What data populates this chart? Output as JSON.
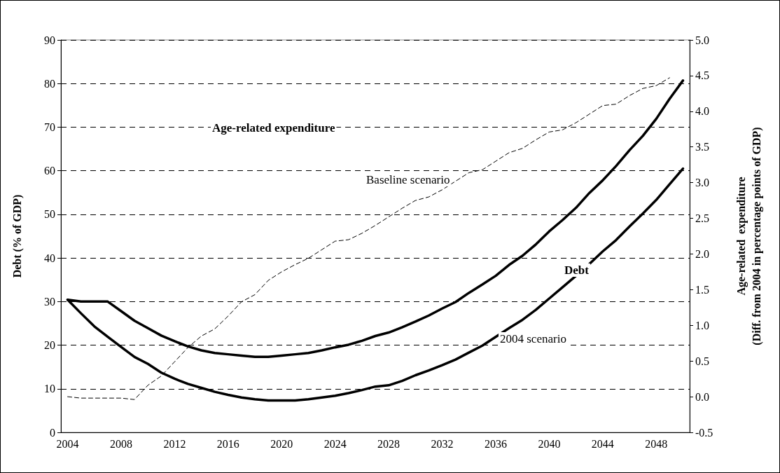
{
  "chart_data": {
    "type": "line",
    "ylabel": "Debt (% of GDP)",
    "y2label": "Age-related  expenditure\n(Diff. from 2004 in percentage points of GDP)",
    "annotations": [
      "Age-related expenditure",
      "Baseline scenario",
      "Debt",
      "2004 scenario"
    ],
    "categories": [
      "2004",
      null,
      null,
      null,
      "2008",
      null,
      null,
      null,
      "2012",
      null,
      null,
      null,
      "2016",
      null,
      null,
      null,
      "2020",
      null,
      null,
      null,
      "2024",
      null,
      null,
      null,
      "2028",
      null,
      null,
      null,
      "2032",
      null,
      null,
      null,
      "2036",
      null,
      null,
      null,
      "2040",
      null,
      null,
      null,
      "2044",
      null,
      null,
      null,
      "2048",
      null,
      null
    ],
    "series": [
      {
        "color": "#000000",
        "line_style": "solid",
        "values": [
          30.4,
          30,
          30,
          30,
          27.8,
          25.6,
          23.9,
          22.2,
          20.9,
          19.7,
          18.8,
          18.2,
          17.9,
          17.6,
          17.3,
          17.3,
          17.6,
          17.9,
          18.2,
          18.8,
          19.5,
          20.1,
          21.0,
          22.1,
          22.9,
          24.1,
          25.4,
          26.8,
          28.4,
          29.9,
          32.0,
          33.9,
          35.9,
          38.4,
          40.5,
          43.1,
          46.1,
          48.7,
          51.5,
          54.9,
          57.8,
          61.1,
          64.7,
          68.0,
          71.9,
          76.5,
          80.7
        ]
      },
      {
        "color": "#000000",
        "line_style": "solid",
        "values": [
          30.4,
          27.3,
          24.3,
          21.9,
          19.6,
          17.3,
          15.7,
          13.7,
          12.3,
          11.1,
          10.2,
          9.3,
          8.6,
          8.0,
          7.6,
          7.3,
          7.3,
          7.3,
          7.6,
          8.0,
          8.4,
          9.0,
          9.7,
          10.5,
          10.8,
          11.8,
          13.1,
          14.2,
          15.4,
          16.7,
          18.3,
          19.9,
          21.9,
          23.9,
          25.8,
          28.1,
          30.7,
          33.3,
          35.9,
          38.6,
          41.5,
          44.1,
          47.2,
          50.2,
          53.3,
          56.9,
          60.5
        ]
      },
      {
        "color": "#000000",
        "line_style": "dashed",
        "axis": "y2",
        "values": [
          0.0,
          -0.02,
          -0.02,
          -0.02,
          -0.02,
          -0.04,
          0.16,
          0.29,
          0.49,
          0.69,
          0.85,
          0.95,
          1.13,
          1.33,
          1.43,
          1.63,
          1.75,
          1.85,
          1.94,
          2.06,
          2.18,
          2.2,
          2.29,
          2.4,
          2.52,
          2.64,
          2.75,
          2.8,
          2.9,
          3.02,
          3.14,
          3.18,
          3.3,
          3.42,
          3.48,
          3.6,
          3.71,
          3.74,
          3.84,
          3.96,
          4.08,
          4.1,
          4.22,
          4.32,
          4.36,
          4.47,
          null
        ]
      }
    ],
    "ylim": [
      0,
      90
    ],
    "yticks": [
      0,
      10,
      20,
      30,
      40,
      50,
      60,
      70,
      80,
      90
    ],
    "y2lim": [
      -0.5,
      5.0
    ],
    "y2ticks": [
      {
        "value": -0.5,
        "label": "-0.5"
      },
      {
        "value": 0,
        "label": "0.0"
      },
      {
        "value": 0.5,
        "label": "0.5"
      },
      {
        "value": 1,
        "label": "1.0"
      },
      {
        "value": 1.5,
        "label": "1.5"
      },
      {
        "value": 2,
        "label": "2.0"
      },
      {
        "value": 2.5,
        "label": "2.5"
      },
      {
        "value": 3,
        "label": "3.0"
      },
      {
        "value": 3.5,
        "label": "3.5"
      },
      {
        "value": 4,
        "label": "4.0"
      },
      {
        "value": 4.5,
        "label": "4.5"
      },
      {
        "value": 5,
        "label": "5.0"
      }
    ],
    "grid": "y",
    "marker": "none"
  }
}
